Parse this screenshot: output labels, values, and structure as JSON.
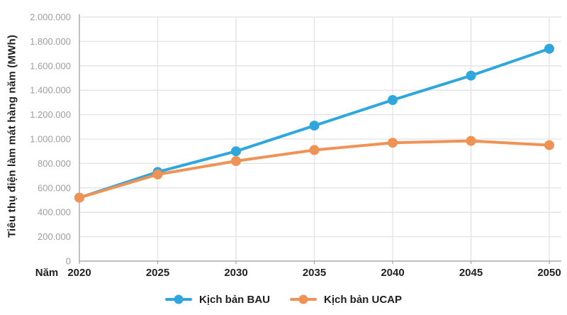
{
  "colors": {
    "background": "#ffffff",
    "gridline": "#e2e2e2",
    "axis_line": "#a8a8a8",
    "y_tick_text": "#9e9e9e",
    "x_tick_text": "#202124",
    "legend_text": "#1f1f1f",
    "bau_blue": "#2fa6dc",
    "ucap_orange": "#ee9355"
  },
  "chart_data": {
    "type": "line",
    "title": "",
    "xlabel": "Năm",
    "ylabel": "Tiêu thụ điện làm mát hàng năm (MWh)",
    "x": [
      2020,
      2025,
      2030,
      2035,
      2040,
      2045,
      2050
    ],
    "x_tick_labels": [
      "2020",
      "2025",
      "2030",
      "2035",
      "2040",
      "2045",
      "2050"
    ],
    "ylim": [
      0,
      2000000
    ],
    "y_tick_step": 200000,
    "y_tick_labels": [
      "0",
      "200.000",
      "400.000",
      "600.000",
      "800.000",
      "1.000.000",
      "1.200.000",
      "1.400.000",
      "1.600.000",
      "1.800.000",
      "2.000.000"
    ],
    "grid": true,
    "legend_position": "bottom",
    "series": [
      {
        "id": "bau",
        "name": "Kịch bản BAU",
        "color": "#2fa6dc",
        "values": [
          520000,
          730000,
          900000,
          1110000,
          1320000,
          1520000,
          1740000
        ]
      },
      {
        "id": "ucap",
        "name": "Kịch bản UCAP",
        "color": "#ee9355",
        "values": [
          520000,
          710000,
          820000,
          910000,
          970000,
          985000,
          950000
        ]
      }
    ]
  }
}
